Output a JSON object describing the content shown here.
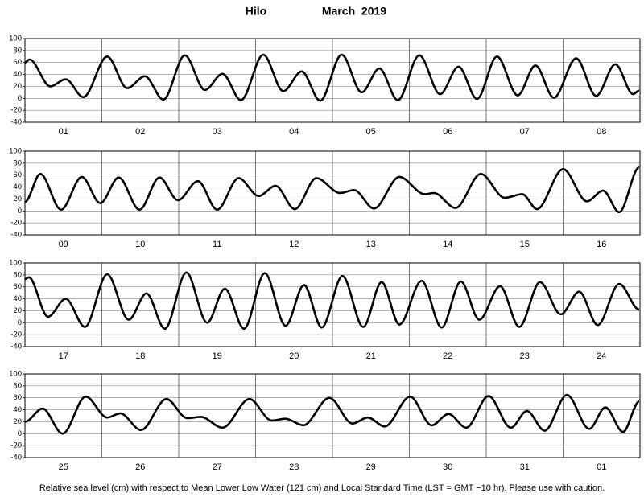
{
  "title": "Hilo",
  "period": "March  2019",
  "footnote": "Relative sea level (cm) with respect to Mean Lower Low Water (121 cm) and Local Standard Time (LST = GMT −10 hr). Please use with caution.",
  "chart_data": [
    {
      "type": "line",
      "categories": [
        "01",
        "02",
        "03",
        "04",
        "05",
        "06",
        "07",
        "08"
      ],
      "color": "#000000",
      "grid": true,
      "xlim": [
        0,
        8
      ],
      "ylim": [
        -40,
        100
      ],
      "yticks": [
        -40,
        -20,
        0,
        20,
        40,
        60,
        80,
        100
      ],
      "x": [
        0,
        0.06,
        0.33,
        0.53,
        0.76,
        1.07,
        1.33,
        1.56,
        1.8,
        2.08,
        2.34,
        2.57,
        2.81,
        3.1,
        3.36,
        3.6,
        3.84,
        4.12,
        4.38,
        4.61,
        4.85,
        5.13,
        5.4,
        5.64,
        5.88,
        6.14,
        6.41,
        6.64,
        6.88,
        7.17,
        7.43,
        7.68,
        7.91,
        7.99
      ],
      "values": [
        60,
        65,
        20,
        32,
        2,
        70,
        17,
        37,
        -2,
        72,
        14,
        41,
        -3,
        73,
        12,
        45,
        -4,
        73,
        10,
        50,
        -3,
        72,
        7,
        53,
        -1,
        70,
        5,
        55,
        1,
        67,
        4,
        57,
        7,
        13
      ]
    },
    {
      "type": "line",
      "categories": [
        "09",
        "10",
        "11",
        "12",
        "13",
        "14",
        "15",
        "16"
      ],
      "color": "#000000",
      "grid": true,
      "xlim": [
        0,
        8
      ],
      "ylim": [
        -40,
        100
      ],
      "yticks": [
        -40,
        -20,
        0,
        20,
        40,
        60,
        80,
        100
      ],
      "x": [
        0,
        0.2,
        0.47,
        0.74,
        0.98,
        1.22,
        1.49,
        1.75,
        1.99,
        2.25,
        2.5,
        2.78,
        3.04,
        3.26,
        3.51,
        3.79,
        4.1,
        4.28,
        4.54,
        4.87,
        5.2,
        5.32,
        5.6,
        5.93,
        6.24,
        6.47,
        6.66,
        7.0,
        7.31,
        7.52,
        7.73,
        7.99
      ],
      "values": [
        15,
        62,
        2,
        57,
        13,
        56,
        2,
        56,
        18,
        50,
        2,
        55,
        25,
        42,
        3,
        55,
        30,
        35,
        4,
        57,
        28,
        30,
        5,
        62,
        22,
        28,
        3,
        70,
        16,
        34,
        -2,
        73
      ]
    },
    {
      "type": "line",
      "categories": [
        "17",
        "18",
        "19",
        "20",
        "21",
        "22",
        "23",
        "24"
      ],
      "color": "#000000",
      "grid": true,
      "xlim": [
        0,
        8
      ],
      "ylim": [
        -40,
        100
      ],
      "yticks": [
        -40,
        -20,
        0,
        20,
        40,
        60,
        80,
        100
      ],
      "x": [
        0,
        0.05,
        0.3,
        0.53,
        0.78,
        1.07,
        1.35,
        1.58,
        1.82,
        2.1,
        2.37,
        2.6,
        2.85,
        3.12,
        3.39,
        3.63,
        3.86,
        4.13,
        4.4,
        4.64,
        4.87,
        5.16,
        5.42,
        5.67,
        5.91,
        6.18,
        6.43,
        6.7,
        6.97,
        7.21,
        7.45,
        7.73,
        7.99
      ],
      "values": [
        73,
        76,
        10,
        40,
        -7,
        81,
        5,
        49,
        -10,
        84,
        0,
        57,
        -10,
        83,
        -5,
        63,
        -8,
        78,
        -7,
        68,
        -3,
        70,
        -8,
        69,
        5,
        61,
        -7,
        68,
        14,
        52,
        -4,
        65,
        22
      ]
    },
    {
      "type": "line",
      "categories": [
        "25",
        "26",
        "27",
        "28",
        "29",
        "30",
        "31",
        "01"
      ],
      "color": "#000000",
      "grid": true,
      "xlim": [
        0,
        8
      ],
      "ylim": [
        -40,
        100
      ],
      "yticks": [
        -40,
        -20,
        0,
        20,
        40,
        60,
        80,
        100
      ],
      "x": [
        0,
        0.23,
        0.49,
        0.79,
        1.07,
        1.24,
        1.51,
        1.84,
        2.11,
        2.29,
        2.57,
        2.92,
        3.21,
        3.39,
        3.62,
        3.96,
        4.26,
        4.46,
        4.68,
        5.01,
        5.29,
        5.51,
        5.74,
        6.03,
        6.32,
        6.53,
        6.76,
        7.05,
        7.34,
        7.55,
        7.78,
        7.99
      ],
      "values": [
        20,
        42,
        0,
        62,
        27,
        34,
        6,
        58,
        26,
        28,
        10,
        58,
        22,
        25,
        14,
        60,
        17,
        27,
        12,
        62,
        14,
        33,
        10,
        63,
        10,
        38,
        5,
        65,
        8,
        44,
        3,
        54
      ]
    }
  ]
}
